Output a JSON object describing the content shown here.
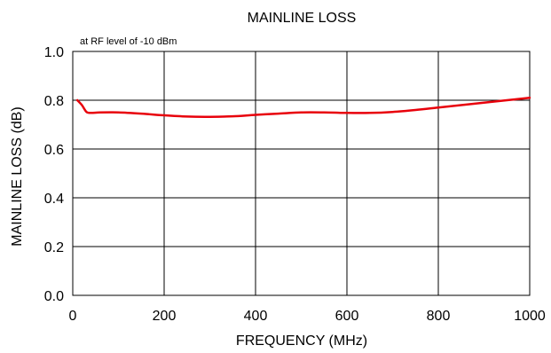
{
  "chart_data": {
    "type": "line",
    "title": "MAINLINE LOSS",
    "annotation": "at RF level of -10 dBm",
    "xlabel": "FREQUENCY (MHz)",
    "ylabel": "MAINLINE LOSS (dB)",
    "xlim": [
      0,
      1000
    ],
    "ylim": [
      0.0,
      1.0
    ],
    "xticks": [
      0,
      200,
      400,
      600,
      800,
      1000
    ],
    "xtick_labels": [
      "0",
      "200",
      "400",
      "600",
      "800",
      "1000"
    ],
    "yticks": [
      0.0,
      0.2,
      0.4,
      0.6,
      0.8,
      1.0
    ],
    "ytick_labels": [
      "0.0",
      "0.2",
      "0.4",
      "0.6",
      "0.8",
      "1.0"
    ],
    "grid": true,
    "series": [
      {
        "color": "#e8000b",
        "x": [
          10,
          20,
          30,
          40,
          60,
          100,
          150,
          200,
          250,
          300,
          350,
          400,
          450,
          500,
          550,
          600,
          650,
          700,
          750,
          800,
          850,
          900,
          950,
          1000
        ],
        "y": [
          0.8,
          0.78,
          0.752,
          0.748,
          0.75,
          0.75,
          0.745,
          0.738,
          0.733,
          0.732,
          0.734,
          0.74,
          0.745,
          0.75,
          0.75,
          0.748,
          0.748,
          0.752,
          0.76,
          0.77,
          0.78,
          0.79,
          0.8,
          0.81
        ]
      }
    ]
  }
}
